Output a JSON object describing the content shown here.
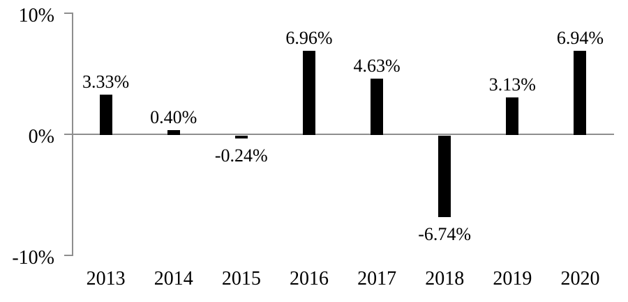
{
  "chart_data": {
    "type": "bar",
    "title": "",
    "xlabel": "",
    "ylabel": "",
    "categories": [
      "2013",
      "2014",
      "2015",
      "2016",
      "2017",
      "2018",
      "2019",
      "2020"
    ],
    "values": [
      3.33,
      0.4,
      -0.24,
      6.96,
      4.63,
      -6.74,
      3.13,
      6.94
    ],
    "labels": [
      "3.33%",
      "0.40%",
      "-0.24%",
      "6.96%",
      "4.63%",
      "-6.74%",
      "3.13%",
      "6.94%"
    ],
    "ylim": [
      -10,
      10
    ],
    "yticks": [
      {
        "value": 10,
        "label": "10%"
      },
      {
        "value": 0,
        "label": "0%"
      },
      {
        "value": -10,
        "label": "-10%"
      }
    ],
    "grid": false,
    "legend": "none",
    "bar_label_position": "outside-end",
    "colors": {
      "bar": "#000000",
      "axis": "#8e8e8e",
      "text": "#000000",
      "background": "#ffffff"
    }
  }
}
